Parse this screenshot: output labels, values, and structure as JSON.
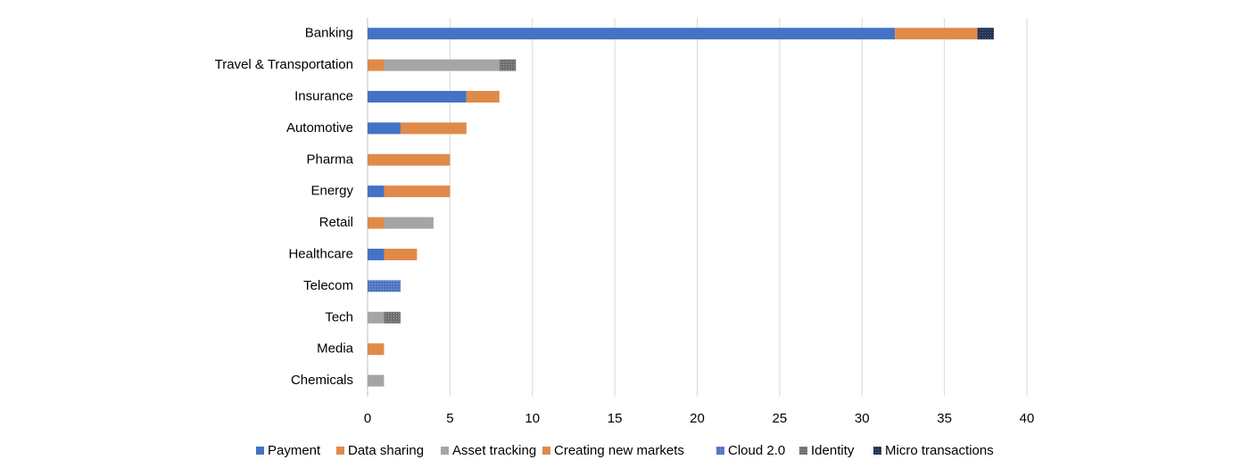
{
  "chart_data": {
    "type": "bar",
    "orientation": "horizontal",
    "stacked": true,
    "title": "",
    "xlabel": "",
    "ylabel": "",
    "xlim": [
      0,
      40
    ],
    "x_ticks": [
      "0",
      "5",
      "10",
      "15",
      "20",
      "25",
      "30",
      "35",
      "40"
    ],
    "grid": "vertical",
    "legend_position": "bottom",
    "categories": [
      "Banking",
      "Travel & Transportation",
      "Insurance",
      "Automotive",
      "Pharma",
      "Energy",
      "Retail",
      "Healthcare",
      "Telecom",
      "Tech",
      "Media",
      "Chemicals"
    ],
    "series": [
      {
        "name": "Payment",
        "color": "#4472c4",
        "pattern": "solid",
        "values": [
          32,
          0,
          6,
          2,
          0,
          1,
          0,
          1,
          0,
          0,
          0,
          0
        ]
      },
      {
        "name": "Data sharing",
        "color": "#e08a4a",
        "pattern": "solid",
        "values": [
          5,
          1,
          2,
          4,
          5,
          4,
          1,
          2,
          0,
          0,
          1,
          0
        ]
      },
      {
        "name": "Asset tracking",
        "color": "#a5a5a5",
        "pattern": "solid",
        "values": [
          0,
          7,
          0,
          0,
          0,
          0,
          3,
          0,
          0,
          1,
          0,
          1
        ]
      },
      {
        "name": "Creating new markets",
        "color": "#e08a4a",
        "pattern": "solid",
        "values": [
          0,
          0,
          0,
          0,
          0,
          0,
          0,
          0,
          0,
          0,
          0,
          0
        ]
      },
      {
        "name": "Cloud 2.0",
        "color": "#5b7fcb",
        "pattern": "dotted",
        "values": [
          0,
          0,
          0,
          0,
          0,
          0,
          0,
          0,
          2,
          0,
          0,
          0
        ]
      },
      {
        "name": "Identity",
        "color": "#7a7a7a",
        "pattern": "dotted",
        "values": [
          0,
          1,
          0,
          0,
          0,
          0,
          0,
          0,
          0,
          1,
          0,
          0
        ]
      },
      {
        "name": "Micro transactions",
        "color": "#2f3f66",
        "pattern": "dotted",
        "values": [
          1,
          0,
          0,
          0,
          0,
          0,
          0,
          0,
          0,
          0,
          0,
          0
        ]
      }
    ]
  }
}
